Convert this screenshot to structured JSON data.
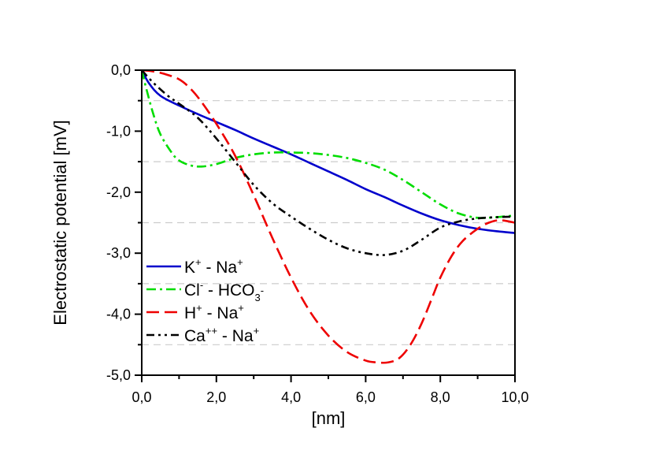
{
  "chart_data": {
    "type": "line",
    "xlabel": "[nm]",
    "ylabel": "Electrostatic potential [mV]",
    "xlim": [
      0,
      10
    ],
    "ylim": [
      -5,
      0
    ],
    "x_ticks": [
      {
        "value": 0,
        "label": "0,0"
      },
      {
        "value": 2,
        "label": "2,0"
      },
      {
        "value": 4,
        "label": "4,0"
      },
      {
        "value": 6,
        "label": "6,0"
      },
      {
        "value": 8,
        "label": "8,0"
      },
      {
        "value": 10,
        "label": "10,0"
      }
    ],
    "y_ticks": [
      {
        "value": 0,
        "label": "0,0"
      },
      {
        "value": -1,
        "label": "-1,0"
      },
      {
        "value": -2,
        "label": "-2,0"
      },
      {
        "value": -3,
        "label": "-3,0"
      },
      {
        "value": -4,
        "label": "-4,0"
      },
      {
        "value": -5,
        "label": "-5,0"
      }
    ],
    "gridlines_y": [
      -0.5,
      -1.5,
      -2.5,
      -3.5,
      -4.5
    ],
    "legend_position": "bottom-left",
    "series": [
      {
        "key": "k-na",
        "name": "K+ - Na+",
        "legend_parts": [
          [
            "K",
            ""
          ],
          [
            "+",
            "sup"
          ],
          [
            " - Na",
            ""
          ],
          [
            "+",
            "sup"
          ]
        ],
        "color": "#0000cc",
        "dash": "solid",
        "x": [
          0,
          0.2,
          0.5,
          1,
          1.5,
          2,
          2.5,
          3,
          3.5,
          4,
          4.5,
          5,
          5.5,
          6,
          6.5,
          7,
          7.5,
          8,
          8.5,
          9,
          9.5,
          10
        ],
        "y": [
          0,
          -0.22,
          -0.42,
          -0.58,
          -0.72,
          -0.85,
          -0.98,
          -1.12,
          -1.25,
          -1.38,
          -1.52,
          -1.66,
          -1.8,
          -1.95,
          -2.08,
          -2.22,
          -2.35,
          -2.46,
          -2.54,
          -2.6,
          -2.64,
          -2.67
        ]
      },
      {
        "key": "cl-hco3",
        "name": "Cl- - HCO3-",
        "legend_parts": [
          [
            "Cl",
            ""
          ],
          [
            "-",
            "sup"
          ],
          [
            " - HCO",
            ""
          ],
          [
            "3",
            "sub"
          ],
          [
            "-",
            "sup"
          ]
        ],
        "color": "#00dd00",
        "dash": "dashdot",
        "x": [
          0,
          0.1,
          0.3,
          0.5,
          0.8,
          1,
          1.3,
          1.6,
          2,
          2.5,
          3,
          3.5,
          4,
          4.5,
          5,
          5.5,
          6,
          6.5,
          7,
          7.5,
          8,
          8.5,
          9,
          9.5,
          10
        ],
        "y": [
          0,
          -0.25,
          -0.7,
          -1.05,
          -1.35,
          -1.48,
          -1.56,
          -1.58,
          -1.54,
          -1.44,
          -1.38,
          -1.35,
          -1.35,
          -1.36,
          -1.39,
          -1.44,
          -1.52,
          -1.63,
          -1.8,
          -2.0,
          -2.2,
          -2.35,
          -2.42,
          -2.41,
          -2.38
        ]
      },
      {
        "key": "h-na",
        "name": "H+ - Na+",
        "legend_parts": [
          [
            "H",
            ""
          ],
          [
            "+",
            "sup"
          ],
          [
            " - Na",
            ""
          ],
          [
            "+",
            "sup"
          ]
        ],
        "color": "#ee0000",
        "dash": "dash",
        "x": [
          0,
          0.3,
          0.6,
          1,
          1.3,
          1.6,
          2,
          2.5,
          3,
          3.5,
          4,
          4.5,
          5,
          5.5,
          6,
          6.3,
          6.6,
          6.9,
          7.2,
          7.5,
          7.8,
          8,
          8.3,
          8.6,
          9,
          9.3,
          9.6,
          10
        ],
        "y": [
          0,
          -0.02,
          -0.06,
          -0.15,
          -0.3,
          -0.52,
          -0.88,
          -1.4,
          -2.05,
          -2.75,
          -3.4,
          -3.95,
          -4.35,
          -4.62,
          -4.76,
          -4.79,
          -4.79,
          -4.72,
          -4.5,
          -4.15,
          -3.7,
          -3.4,
          -3.05,
          -2.8,
          -2.6,
          -2.5,
          -2.46,
          -2.5
        ]
      },
      {
        "key": "ca-na",
        "name": "Ca++ - Na+",
        "legend_parts": [
          [
            "Ca",
            ""
          ],
          [
            "++",
            "sup"
          ],
          [
            " - Na",
            ""
          ],
          [
            "+",
            "sup"
          ]
        ],
        "color": "#000000",
        "dash": "dashdotdot",
        "x": [
          0,
          0.3,
          0.7,
          1,
          1.5,
          2,
          2.5,
          3,
          3.5,
          4,
          4.5,
          5,
          5.5,
          6,
          6.5,
          7,
          7.5,
          8,
          8.5,
          9,
          9.5,
          10
        ],
        "y": [
          0,
          -0.2,
          -0.42,
          -0.55,
          -0.78,
          -1.12,
          -1.5,
          -1.88,
          -2.18,
          -2.4,
          -2.6,
          -2.78,
          -2.92,
          -3.0,
          -3.03,
          -2.96,
          -2.78,
          -2.58,
          -2.48,
          -2.43,
          -2.41,
          -2.4
        ]
      }
    ]
  }
}
